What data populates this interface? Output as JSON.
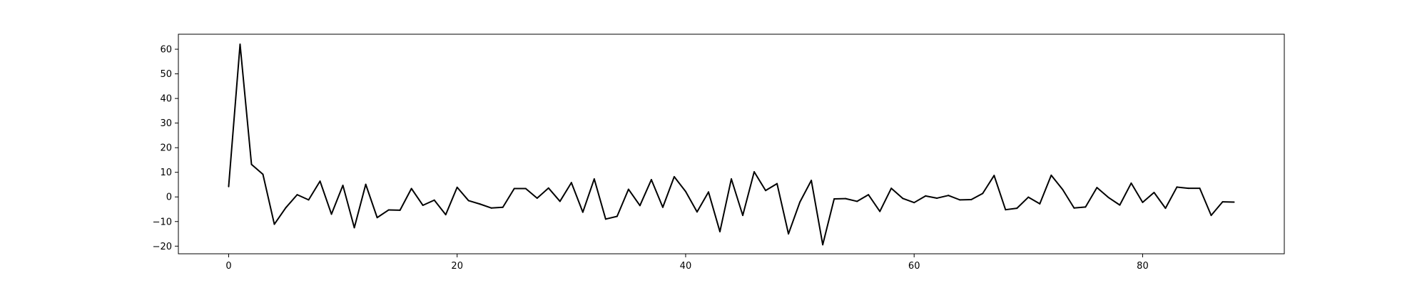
{
  "chart_data": {
    "type": "line",
    "title": "",
    "xlabel": "",
    "ylabel": "",
    "xlim": [
      -4.4,
      92.4
    ],
    "ylim": [
      -23.1,
      66.1
    ],
    "xticks": [
      0,
      20,
      40,
      60,
      80
    ],
    "yticks": [
      -20,
      -10,
      0,
      10,
      20,
      30,
      40,
      50,
      60
    ],
    "grid": false,
    "legend": "none",
    "series": [
      {
        "color": "#000000",
        "x": [
          0,
          1,
          2,
          3,
          4,
          5,
          6,
          7,
          8,
          9,
          10,
          11,
          12,
          13,
          14,
          15,
          16,
          17,
          18,
          19,
          20,
          21,
          22,
          23,
          24,
          25,
          26,
          27,
          28,
          29,
          30,
          31,
          32,
          33,
          34,
          35,
          36,
          37,
          38,
          39,
          40,
          41,
          42,
          43,
          44,
          45,
          46,
          47,
          48,
          49,
          50,
          51,
          52,
          53,
          54,
          55,
          56,
          57,
          58,
          59,
          60,
          61,
          62,
          63,
          64,
          65,
          66,
          67,
          68,
          69,
          70,
          71,
          72,
          73,
          74,
          75,
          76,
          77,
          78,
          79,
          80,
          81,
          82,
          83,
          84,
          85,
          86,
          87,
          88
        ],
        "y": [
          4.2,
          62,
          13.2,
          9.2,
          -11.1,
          -4.4,
          0.9,
          -1.2,
          6.4,
          -7,
          4.7,
          -12.5,
          5.1,
          -8.4,
          -5.3,
          -5.4,
          3.4,
          -3.4,
          -1.3,
          -7.2,
          3.9,
          -1.5,
          -2.9,
          -4.5,
          -4.2,
          3.4,
          3.4,
          -0.5,
          3.6,
          -1.8,
          5.8,
          -6.2,
          7.3,
          -9,
          -7.9,
          3.1,
          -3.5,
          7,
          -4.2,
          8.2,
          2.2,
          -6.1,
          2,
          -14.1,
          7.3,
          -7.5,
          10.2,
          2.6,
          5.4,
          -15,
          -2.1,
          6.7,
          -19.4,
          -0.8,
          -0.7,
          -1.8,
          0.9,
          -5.9,
          3.5,
          -0.6,
          -2.3,
          0.4,
          -0.5,
          0.6,
          -1.2,
          -1.1,
          1.4,
          8.7,
          -5.2,
          -4.6,
          -0.1,
          -2.8,
          8.8,
          3,
          -4.5,
          -4.1,
          3.8,
          -0.2,
          -3.3,
          5.6,
          -2.2,
          1.8,
          -4.6,
          4,
          3.5,
          3.5,
          -7.5,
          -2,
          -2.1
        ]
      }
    ]
  }
}
